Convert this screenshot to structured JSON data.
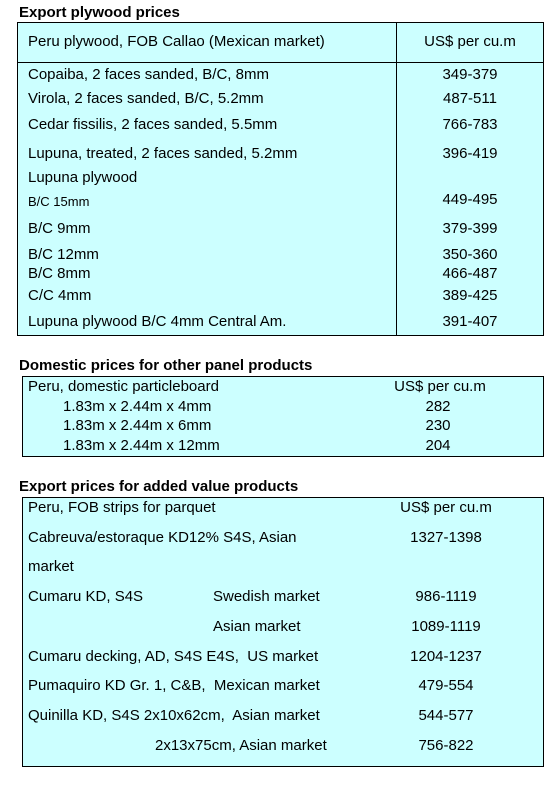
{
  "sections": [
    {
      "title": "Export plywood prices",
      "header": [
        "Peru plywood, FOB Callao (Mexican market)",
        "US$ per cu.m"
      ],
      "rows": [
        {
          "label": "Copaiba, 2 faces sanded, B/C, 8mm",
          "price": "349-379"
        },
        {
          "label": "Virola, 2 faces sanded, B/C, 5.2mm",
          "price": "487-511"
        },
        {
          "label": "Cedar fissilis, 2 faces sanded, 5.5mm",
          "price": "766-783"
        },
        {
          "label": "Lupuna, treated, 2 faces sanded, 5.2mm",
          "price": "396-419"
        },
        {
          "label": "Lupuna plywood"
        },
        {
          "label": "B/C 15mm",
          "price": "449-495"
        },
        {
          "label": "B/C 9mm",
          "price": "379-399"
        },
        {
          "label": "B/C 12mm",
          "price": "350-360"
        },
        {
          "label": "B/C 8mm",
          "price": "466-487"
        },
        {
          "label": "C/C 4mm",
          "price": "389-425"
        },
        {
          "label": "Lupuna plywood B/C 4mm Central Am.",
          "price": "391-407"
        }
      ]
    },
    {
      "title": "Domestic prices for other panel products",
      "header": [
        "Peru, domestic particleboard",
        "US$ per cu.m"
      ],
      "rows": [
        {
          "label": "1.83m x 2.44m x 4mm",
          "price": "282"
        },
        {
          "label": "1.83m x 2.44m x 6mm",
          "price": "230"
        },
        {
          "label": "1.83m x 2.44m x 12mm",
          "price": "204"
        }
      ]
    },
    {
      "title": "Export prices for added value products",
      "header": [
        "Peru, FOB strips for parquet",
        "US$ per cu.m"
      ],
      "rows": [
        {
          "label": "Cabreuva/estoraque KD12% S4S, Asian",
          "price": "1327-1398"
        },
        {
          "label": "market"
        },
        {
          "label": "Cumaru KD, S4S",
          "market": "Swedish market",
          "price": "986-1119"
        },
        {
          "market": "Asian market",
          "price": "1089-1119"
        },
        {
          "label": "Cumaru decking, AD, S4S E4S,  US market",
          "price": "1204-1237"
        },
        {
          "label": "Pumaquiro KD Gr. 1, C&B,  Mexican market",
          "price": "479-554"
        },
        {
          "label": "Quinilla KD, S4S 2x10x62cm,  Asian market",
          "price": "544-577"
        },
        {
          "market": "2x13x75cm, Asian market",
          "price": "756-822"
        }
      ]
    }
  ]
}
